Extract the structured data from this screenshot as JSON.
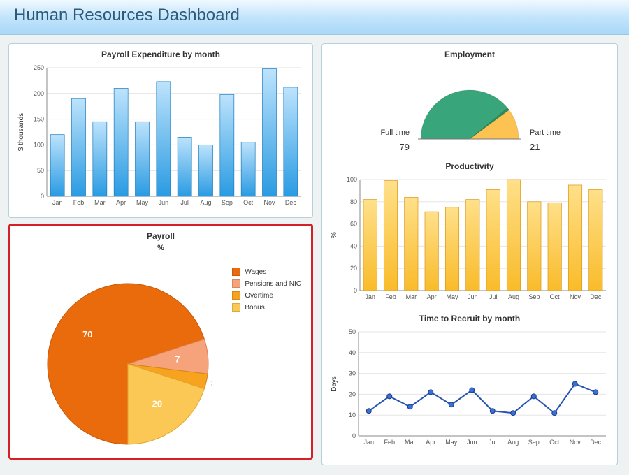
{
  "header": {
    "title": "Human Resources Dashboard"
  },
  "months": [
    "Jan",
    "Feb",
    "Mar",
    "Apr",
    "May",
    "Jun",
    "Jul",
    "Aug",
    "Sep",
    "Oct",
    "Nov",
    "Dec"
  ],
  "payroll_expenditure": {
    "title": "Payroll Expenditure by month",
    "ylabel": "$ thousands",
    "ylim": [
      0,
      250
    ],
    "ytick_step": 50,
    "values": [
      120,
      190,
      145,
      210,
      145,
      223,
      115,
      100,
      198,
      105,
      248,
      212
    ],
    "bar_fill_top": "#bde3fc",
    "bar_fill_bottom": "#2a9be2",
    "bar_stroke": "#1e7bbd",
    "axis_color": "#888888",
    "grid_color": "#e0e0e0",
    "label_fontsize": 10,
    "tick_fontsize": 9
  },
  "payroll_pie": {
    "title": "Payroll",
    "subtitle": "%",
    "highlight_border": "#d62027",
    "slices": [
      {
        "label": "Wages",
        "value": 70,
        "color": "#ea6b0c",
        "stroke": "#c9560a",
        "text_color": "#ffffff"
      },
      {
        "label": "Pensions and NIC",
        "value": 7,
        "color": "#f6a27b",
        "stroke": "#e27d4f",
        "text_color": "#ffffff"
      },
      {
        "label": "Overtime",
        "value": 3,
        "color": "#f7a31f",
        "stroke": "#d38612",
        "text_color": "#333333",
        "external_label": true
      },
      {
        "label": "Bonus",
        "value": 20,
        "color": "#fbc856",
        "stroke": "#e0a92f",
        "text_color": "#ffffff"
      }
    ]
  },
  "employment_gauge": {
    "title": "Employment",
    "left": {
      "label": "Full time",
      "value": 79,
      "color": "#38a67a"
    },
    "right": {
      "label": "Part time",
      "value": 21,
      "color": "#fcc252"
    },
    "needle_slice_color": "#2f8a5e"
  },
  "productivity": {
    "title": "Productivity",
    "ylabel": "%",
    "ylim": [
      0,
      100
    ],
    "ytick_step": 20,
    "values": [
      82,
      99,
      84,
      71,
      75,
      82,
      91,
      100,
      80,
      79,
      95,
      91
    ],
    "bar_fill_top": "#ffe08a",
    "bar_fill_bottom": "#f9bb2a",
    "bar_stroke": "#d9981a",
    "axis_color": "#888888",
    "grid_color": "#e5e5e5"
  },
  "time_to_recruit": {
    "title": "Time to Recruit by month",
    "ylabel": "Days",
    "ylim": [
      0,
      50
    ],
    "ytick_step": 10,
    "values": [
      12,
      19,
      14,
      21,
      15,
      22,
      12,
      11,
      19,
      11,
      25,
      21
    ],
    "line_color": "#2653b0",
    "marker_fill": "#3a6fd8",
    "marker_stroke": "#1b3d85",
    "axis_color": "#888888",
    "grid_color": "#e5e5e5"
  }
}
